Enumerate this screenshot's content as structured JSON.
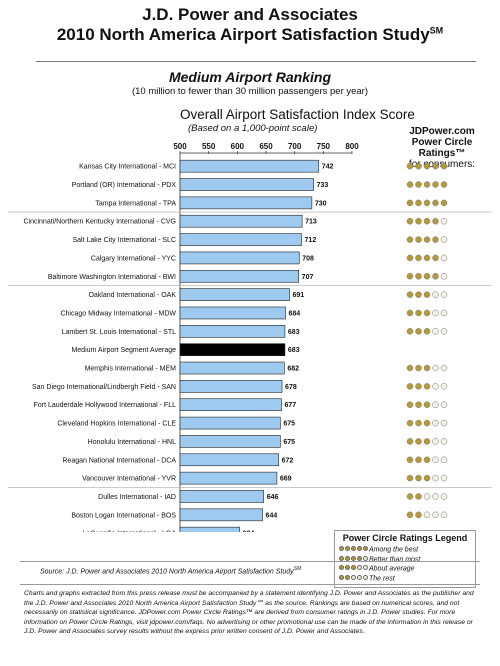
{
  "header": {
    "title1": "J.D. Power and Associates",
    "title2": "2010 North America Airport Satisfaction Study",
    "title2_mark": "SM"
  },
  "ranking": {
    "title": "Medium Airport Ranking",
    "subtitle": "(10 million to fewer than 30 million passengers per year)"
  },
  "ratings_header": {
    "line1": "JDPower.com",
    "line2": "Power Circle Ratings™",
    "line3": "for consumers:"
  },
  "chart_data": {
    "type": "bar",
    "orientation": "horizontal",
    "title": "Overall Airport Satisfaction Index Score",
    "subtitle": "(Based on a 1,000-point scale)",
    "xlim": [
      500,
      800
    ],
    "xticks": [
      500,
      550,
      600,
      650,
      700,
      750,
      800
    ],
    "grid": false,
    "colors": {
      "bar": "#9ecaf0",
      "highlight": "#000000",
      "dot_gold": "#b59a3c",
      "dot_empty": "#f4f1e6"
    },
    "categories": [
      "Kansas City International - MCI",
      "Portland (OR) International - PDX",
      "Tampa International - TPA",
      "Cincinnati/Northern Kentucky International - CVG",
      "Salt Lake City International - SLC",
      "Calgary International - YYC",
      "Baltimore Washington International - BWI",
      "Oakland International - OAK",
      "Chicago Midway International - MDW",
      "Lambert St. Louis International - STL",
      "Medium Airport Segment Average",
      "Memphis International - MEM",
      "San Diego International/Lindbergh Field - SAN",
      "Fort Lauderdale Hollywood International - FLL",
      "Cleveland Hopkins International - CLE",
      "Honolulu International - HNL",
      "Reagan National International - DCA",
      "Vancouver International - YVR",
      "Dulles International - IAD",
      "Boston Logan International - BOS",
      "LaGuardia International - LGA"
    ],
    "values": [
      742,
      733,
      730,
      713,
      712,
      708,
      707,
      691,
      684,
      683,
      683,
      682,
      678,
      677,
      675,
      675,
      672,
      669,
      646,
      644,
      604
    ],
    "highlight_index": 10,
    "power_circle_ratings": [
      5,
      5,
      5,
      4,
      4,
      4,
      4,
      3,
      3,
      3,
      null,
      3,
      3,
      3,
      3,
      3,
      3,
      3,
      2,
      2,
      2
    ],
    "group_breaks_after": [
      2,
      6,
      17
    ]
  },
  "legend": {
    "title": "Power Circle Ratings Legend",
    "items": [
      {
        "circles": 5,
        "label": "Among the best"
      },
      {
        "circles": 4,
        "label": "Better than most"
      },
      {
        "circles": 3,
        "label": "About average"
      },
      {
        "circles": 2,
        "label": "The rest"
      }
    ]
  },
  "footer": {
    "source": "Source: J.D. Power and Associates 2010 North America Airport Satisfaction Study",
    "source_mark": "SM",
    "disclaimer": "Charts and graphs extracted from this press release must be accompanied by a statement identifying J.D. Power and Associates as the publisher and the J.D. Power and Associates 2010 North America Airport Satisfaction Study℠ as the source. Rankings are based on numerical scores, and not necessarily on statistical significance. JDPower.com Power Circle Ratings™ are derived from consumer ratings in J.D. Power studies. For more information on Power Circle Ratings, visit jdpower.com/faqs. No advertising or other promotional use can be made of the information in this release or J.D. Power and Associates survey results without the express prior written consent of J.D. Power and Associates."
  }
}
